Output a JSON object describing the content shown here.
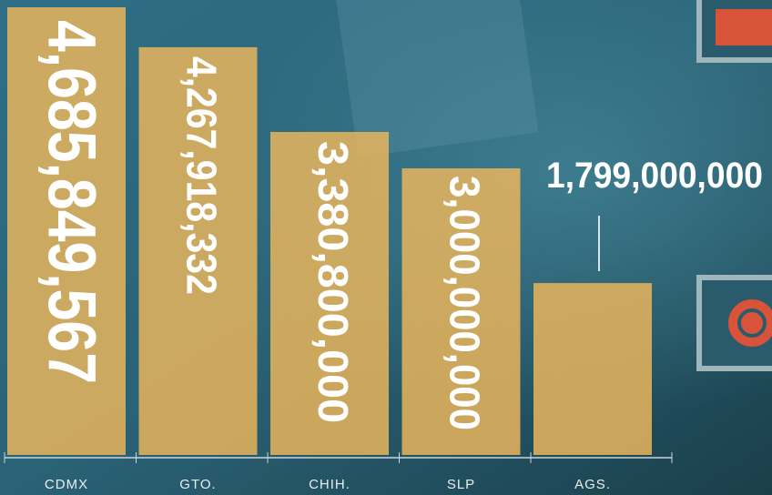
{
  "chart_data": {
    "type": "bar",
    "categories": [
      "CDMX",
      "GTO.",
      "CHIH.",
      "SLP",
      "AGS."
    ],
    "values": [
      4685849567,
      4267918332,
      3380800000,
      3000000000,
      1799000000
    ],
    "value_labels": [
      "4,685,849,567",
      "4,267,918,332",
      "3,380,800,000",
      "3,000,000,000",
      "1,799,000,000"
    ],
    "color": "#e9b55c"
  }
}
